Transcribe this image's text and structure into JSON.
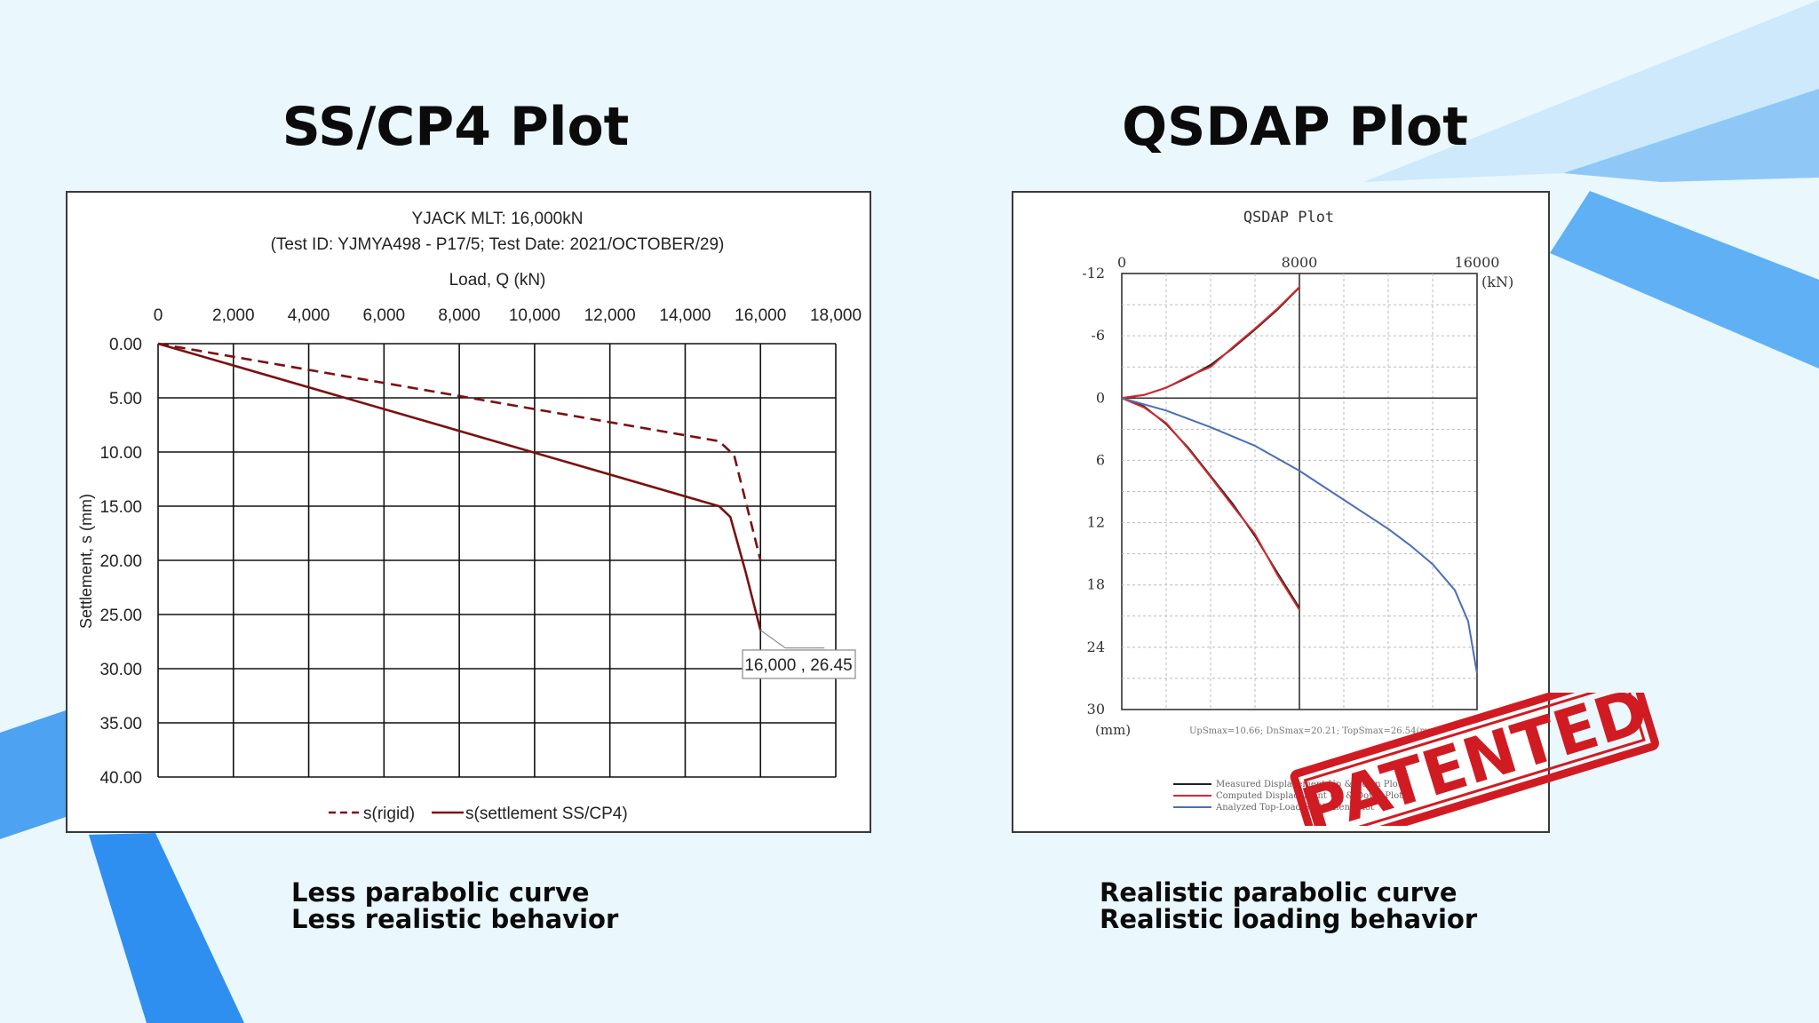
{
  "left": {
    "heading": "SS/CP4 Plot",
    "caption_line1": "Less parabolic curve",
    "caption_line2": "Less realistic behavior"
  },
  "right": {
    "heading": "QSDAP Plot",
    "caption_line1": "Realistic parabolic curve",
    "caption_line2": "Realistic loading behavior"
  },
  "stamp": {
    "text": "PATENTED",
    "color": "#d11b22"
  },
  "colors": {
    "background": "#eaf8fe",
    "accent_blue": "#2f8ff0",
    "ss_series": "#7b1010",
    "qsdap_blue": "#4a6fb5",
    "qsdap_red": "#d9262b"
  },
  "chart_data": [
    {
      "type": "line",
      "title_line1": "YJACK MLT: 16,000kN",
      "title_line2": "(Test ID: YJMYA498 - P17/5; Test Date: 2021/OCTOBER/29)",
      "xlabel": "Load, Q (kN)",
      "ylabel": "Settlement, s (mm)",
      "x_axis_position": "top",
      "y_inverted": true,
      "xlim": [
        0,
        18000
      ],
      "ylim": [
        0,
        40
      ],
      "x_ticks": [
        "0",
        "2,000",
        "4,000",
        "6,000",
        "8,000",
        "10,000",
        "12,000",
        "14,000",
        "16,000",
        "18,000"
      ],
      "y_ticks": [
        "0.00",
        "5.00",
        "10.00",
        "15.00",
        "20.00",
        "25.00",
        "30.00",
        "35.00",
        "40.00"
      ],
      "grid": true,
      "legend_position": "bottom",
      "series": [
        {
          "name": "s(rigid)",
          "dash": true,
          "x": [
            0,
            14900,
            15300,
            16000
          ],
          "y": [
            0,
            9.0,
            10.3,
            20.0
          ]
        },
        {
          "name": "s(settlement SS/CP4)",
          "dash": false,
          "x": [
            0,
            14900,
            15200,
            15600,
            16000
          ],
          "y": [
            0,
            15.0,
            16.0,
            21.0,
            26.45
          ]
        }
      ],
      "annotation": {
        "text": "16,000 , 26.45",
        "x": 16000,
        "y": 26.45
      }
    },
    {
      "type": "line",
      "title": "QSDAP Plot",
      "x_unit": "(kN)",
      "y_unit": "(mm)",
      "x_axis_position": "top",
      "y_inverted": true,
      "xlim": [
        0,
        16000
      ],
      "ylim": [
        -12,
        30
      ],
      "x_ticks": [
        "0",
        "8000",
        "16000"
      ],
      "y_ticks": [
        "-12",
        "-6",
        "0",
        "6",
        "12",
        "18",
        "24",
        "30"
      ],
      "grid": true,
      "footnote": "UpSmax=10.66; DnSmax=20.21; TopSmax=26.54(mm)",
      "legend_position": "bottom-left",
      "legend": [
        "Measured Displacement Up & Down Plots",
        "Computed Displacement Up & Down Plots",
        "Analyzed Top-Load Settlement Plot"
      ],
      "series": [
        {
          "name": "Measured Displacement Up & Down Plots",
          "part": "up",
          "x": [
            0,
            1000,
            2000,
            3000,
            4000,
            5000,
            6000,
            7000,
            8000
          ],
          "y": [
            0,
            -0.3,
            -1.0,
            -2.0,
            -3.2,
            -4.8,
            -6.6,
            -8.5,
            -10.66
          ]
        },
        {
          "name": "Computed Displacement Up & Down Plots",
          "part": "up",
          "x": [
            0,
            1000,
            2000,
            3000,
            4000,
            5000,
            6000,
            7000,
            8000
          ],
          "y": [
            0,
            -0.3,
            -1.0,
            -2.1,
            -3.0,
            -4.9,
            -6.7,
            -8.6,
            -10.7
          ]
        },
        {
          "name": "Measured Displacement Up & Down Plots",
          "part": "down",
          "x": [
            0,
            1000,
            2000,
            3000,
            4000,
            5000,
            6000,
            7000,
            8000
          ],
          "y": [
            0,
            0.8,
            2.5,
            4.8,
            7.5,
            10.2,
            13.3,
            16.8,
            20.21
          ]
        },
        {
          "name": "Computed Displacement Up & Down Plots",
          "part": "down",
          "x": [
            0,
            1000,
            2000,
            3000,
            4000,
            5000,
            6000,
            7000,
            8000
          ],
          "y": [
            0,
            0.9,
            2.4,
            4.9,
            7.6,
            10.4,
            13.1,
            17.0,
            20.4
          ]
        },
        {
          "name": "Analyzed Top-Load Settlement Plot",
          "part": "top",
          "x": [
            0,
            2000,
            4000,
            6000,
            8000,
            10000,
            12000,
            13000,
            14000,
            15000,
            15600,
            16000
          ],
          "y": [
            0,
            1.2,
            2.8,
            4.6,
            7.0,
            9.8,
            12.6,
            14.2,
            16.0,
            18.5,
            21.5,
            26.54
          ]
        }
      ]
    }
  ]
}
